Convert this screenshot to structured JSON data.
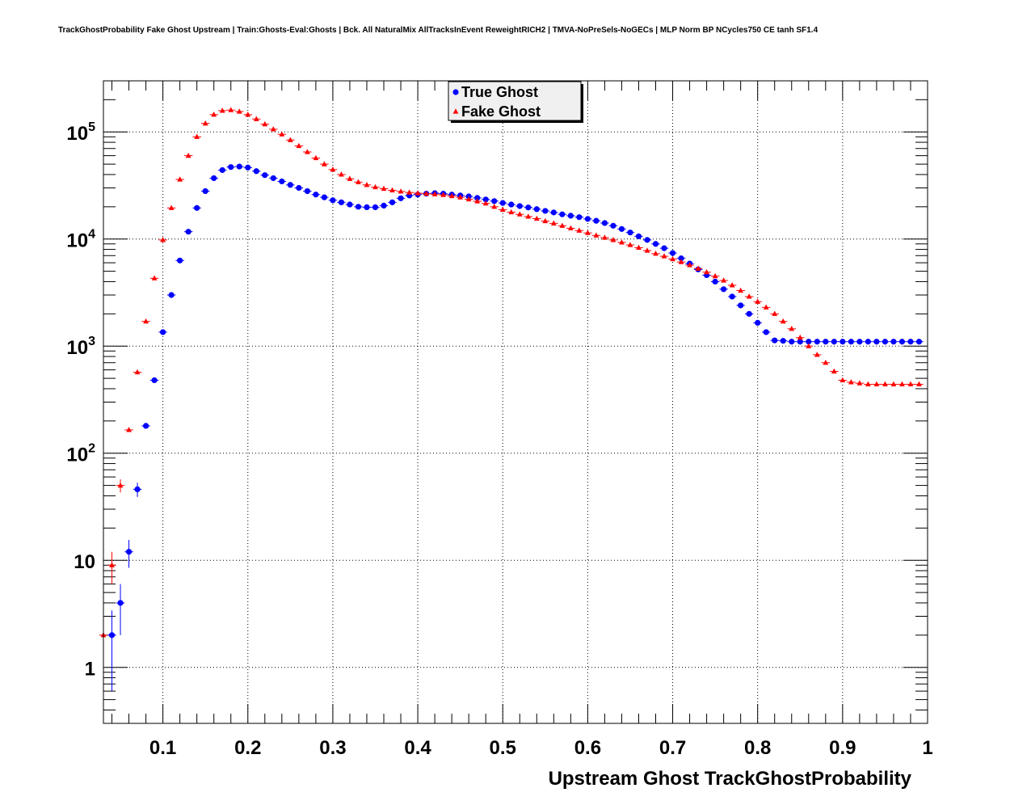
{
  "chart_data": {
    "type": "scatter",
    "title": "TrackGhostProbability Fake Ghost Upstream | Train:Ghosts-Eval:Ghosts | Bck. All NaturalMix AllTracksInEvent ReweightRICH2 | TMVA-NoPreSels-NoGECs | MLP Norm BP NCycles750 CE tanh SF1.4",
    "xlabel": "Upstream Ghost TrackGhostProbability",
    "ylabel": "",
    "xlim": [
      0.03,
      1.0
    ],
    "ylim": [
      0.3,
      300000
    ],
    "yscale": "log",
    "grid": true,
    "legend_position": "top-center",
    "x_ticks": [
      {
        "value": 0.1,
        "label": "0.1"
      },
      {
        "value": 0.2,
        "label": "0.2"
      },
      {
        "value": 0.3,
        "label": "0.3"
      },
      {
        "value": 0.4,
        "label": "0.4"
      },
      {
        "value": 0.5,
        "label": "0.5"
      },
      {
        "value": 0.6,
        "label": "0.6"
      },
      {
        "value": 0.7,
        "label": "0.7"
      },
      {
        "value": 0.8,
        "label": "0.8"
      },
      {
        "value": 0.9,
        "label": "0.9"
      },
      {
        "value": 1.0,
        "label": "1"
      }
    ],
    "y_ticks": [
      {
        "value": 1,
        "label": "1"
      },
      {
        "value": 10,
        "label": "10"
      },
      {
        "value": 100,
        "label": "10",
        "exp": "2"
      },
      {
        "value": 1000,
        "label": "10",
        "exp": "3"
      },
      {
        "value": 10000,
        "label": "10",
        "exp": "4"
      },
      {
        "value": 100000,
        "label": "10",
        "exp": "5"
      }
    ],
    "series": [
      {
        "name": "True Ghost",
        "color": "#0000ff",
        "marker": "circle",
        "x": [
          0.04,
          0.05,
          0.06,
          0.07,
          0.08,
          0.09,
          0.1,
          0.11,
          0.12,
          0.13,
          0.14,
          0.15,
          0.16,
          0.17,
          0.18,
          0.19,
          0.2,
          0.21,
          0.22,
          0.23,
          0.24,
          0.25,
          0.26,
          0.27,
          0.28,
          0.29,
          0.3,
          0.31,
          0.32,
          0.33,
          0.34,
          0.35,
          0.36,
          0.37,
          0.38,
          0.39,
          0.4,
          0.41,
          0.42,
          0.43,
          0.44,
          0.45,
          0.46,
          0.47,
          0.48,
          0.49,
          0.5,
          0.51,
          0.52,
          0.53,
          0.54,
          0.55,
          0.56,
          0.57,
          0.58,
          0.59,
          0.6,
          0.61,
          0.62,
          0.63,
          0.64,
          0.65,
          0.66,
          0.67,
          0.68,
          0.69,
          0.7,
          0.71,
          0.72,
          0.73,
          0.74,
          0.75,
          0.76,
          0.77,
          0.78,
          0.79,
          0.8,
          0.81,
          0.82,
          0.83,
          0.84,
          0.85,
          0.86,
          0.87,
          0.88,
          0.89,
          0.9,
          0.91,
          0.92,
          0.93,
          0.94,
          0.95,
          0.96,
          0.97,
          0.98,
          0.99
        ],
        "y": [
          2,
          4,
          12,
          46,
          180,
          480,
          1350,
          3000,
          6300,
          11700,
          19500,
          28000,
          37000,
          44000,
          47000,
          47500,
          46500,
          43000,
          39500,
          37000,
          34500,
          32000,
          30000,
          28000,
          26000,
          24500,
          23000,
          22000,
          21000,
          20000,
          19800,
          19800,
          20500,
          22000,
          24000,
          25500,
          26000,
          26500,
          26800,
          26500,
          26000,
          25500,
          25000,
          24200,
          23400,
          22600,
          21700,
          21000,
          20300,
          19700,
          19000,
          18300,
          17700,
          17000,
          16500,
          16000,
          15400,
          14800,
          14100,
          13300,
          12400,
          11500,
          10600,
          9800,
          9000,
          8200,
          7400,
          6600,
          5900,
          5200,
          4600,
          4000,
          3400,
          2900,
          2400,
          2000,
          1650,
          1350,
          1130,
          1120,
          1100,
          1100,
          1100,
          1100,
          1100,
          1100,
          1100,
          1100,
          1100,
          1100,
          1100,
          1100,
          1100,
          1100,
          1100,
          1100
        ],
        "yerr": [
          1.4,
          2,
          3.5,
          7,
          0,
          0,
          0,
          0,
          0,
          0,
          0,
          0,
          0,
          0,
          0,
          0,
          0,
          0,
          0,
          0,
          0,
          0,
          0,
          0,
          0,
          0,
          0,
          0,
          0,
          0,
          0,
          0,
          0,
          0,
          0,
          0,
          0,
          0,
          0,
          0,
          0,
          0,
          0,
          0,
          0,
          0,
          0,
          0,
          0,
          0,
          0,
          0,
          0,
          0,
          0,
          0,
          0,
          0,
          0,
          0,
          0,
          0,
          0,
          0,
          0,
          0,
          0,
          0,
          0,
          0,
          0,
          0,
          0,
          0,
          0,
          0,
          0,
          0,
          0,
          0,
          0,
          0,
          0,
          0,
          0,
          0,
          0,
          0,
          0,
          0,
          0,
          0,
          0,
          0,
          0,
          0
        ]
      },
      {
        "name": "Fake Ghost",
        "color": "#ff0000",
        "marker": "triangle",
        "x": [
          0.03,
          0.04,
          0.05,
          0.06,
          0.07,
          0.08,
          0.09,
          0.1,
          0.11,
          0.12,
          0.13,
          0.14,
          0.15,
          0.16,
          0.17,
          0.18,
          0.19,
          0.2,
          0.21,
          0.22,
          0.23,
          0.24,
          0.25,
          0.26,
          0.27,
          0.28,
          0.29,
          0.3,
          0.31,
          0.32,
          0.33,
          0.34,
          0.35,
          0.36,
          0.37,
          0.38,
          0.39,
          0.4,
          0.41,
          0.42,
          0.43,
          0.44,
          0.45,
          0.46,
          0.47,
          0.48,
          0.49,
          0.5,
          0.51,
          0.52,
          0.53,
          0.54,
          0.55,
          0.56,
          0.57,
          0.58,
          0.59,
          0.6,
          0.61,
          0.62,
          0.63,
          0.64,
          0.65,
          0.66,
          0.67,
          0.68,
          0.69,
          0.7,
          0.71,
          0.72,
          0.73,
          0.74,
          0.75,
          0.76,
          0.77,
          0.78,
          0.79,
          0.8,
          0.81,
          0.82,
          0.83,
          0.84,
          0.85,
          0.86,
          0.87,
          0.88,
          0.89,
          0.9,
          0.91,
          0.92,
          0.93,
          0.94,
          0.95,
          0.96,
          0.97,
          0.98,
          0.99
        ],
        "y": [
          2,
          9,
          50,
          165,
          570,
          1700,
          4300,
          9800,
          19500,
          36000,
          60000,
          90000,
          120000,
          145000,
          158000,
          160000,
          155000,
          145000,
          132000,
          118000,
          106000,
          95000,
          84000,
          74000,
          65000,
          57000,
          50000,
          44500,
          40000,
          36500,
          34000,
          32000,
          30500,
          29500,
          28500,
          27800,
          27200,
          26800,
          26500,
          26200,
          25800,
          25200,
          24500,
          23500,
          22500,
          21500,
          20000,
          18800,
          17800,
          17000,
          16200,
          15500,
          14700,
          14000,
          13300,
          12600,
          12000,
          11400,
          10800,
          10300,
          9800,
          9300,
          8800,
          8300,
          7800,
          7300,
          6900,
          6500,
          6100,
          5700,
          5300,
          4900,
          4500,
          4100,
          3700,
          3300,
          2900,
          2600,
          2300,
          2000,
          1700,
          1450,
          1200,
          1000,
          830,
          700,
          580,
          480,
          460,
          450,
          440,
          440,
          440,
          440,
          440,
          440,
          440
        ],
        "yerr": [
          1.4,
          3,
          7,
          0,
          0,
          0,
          0,
          0,
          0,
          0,
          0,
          0,
          0,
          0,
          0,
          0,
          0,
          0,
          0,
          0,
          0,
          0,
          0,
          0,
          0,
          0,
          0,
          0,
          0,
          0,
          0,
          0,
          0,
          0,
          0,
          0,
          0,
          0,
          0,
          0,
          0,
          0,
          0,
          0,
          0,
          0,
          0,
          0,
          0,
          0,
          0,
          0,
          0,
          0,
          0,
          0,
          0,
          0,
          0,
          0,
          0,
          0,
          0,
          0,
          0,
          0,
          0,
          0,
          0,
          0,
          0,
          0,
          0,
          0,
          0,
          0,
          0,
          0,
          0,
          0,
          0,
          0,
          0,
          0,
          0,
          0,
          0,
          0,
          0,
          0,
          0,
          0,
          0,
          0,
          0,
          0,
          0
        ]
      }
    ]
  }
}
